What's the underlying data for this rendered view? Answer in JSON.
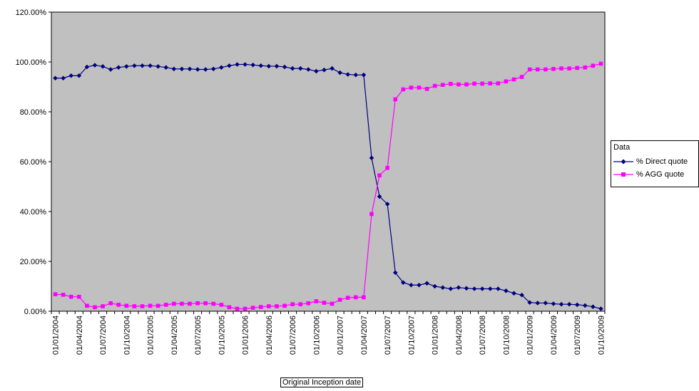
{
  "chart_data": {
    "type": "line",
    "xlabel": "Original Inception date",
    "legend_title": "Data",
    "legend_position": "right",
    "ylim": [
      0,
      120
    ],
    "y_ticks": [
      "0.00%",
      "20.00%",
      "40.00%",
      "60.00%",
      "80.00%",
      "100.00%",
      "120.00%"
    ],
    "x_tick_labels": [
      "01/01/2004",
      "01/04/2004",
      "01/07/2004",
      "01/10/2004",
      "01/01/2005",
      "01/04/2005",
      "01/07/2005",
      "01/10/2005",
      "01/01/2006",
      "01/04/2006",
      "01/07/2006",
      "01/10/2006",
      "01/01/2007",
      "01/04/2007",
      "01/07/2007",
      "01/10/2007",
      "01/01/2008",
      "01/04/2008",
      "01/07/2008",
      "01/10/2008",
      "01/01/2009",
      "01/04/2009",
      "01/07/2009",
      "01/10/2009"
    ],
    "x_start": "01/01/2004",
    "x_interval": "monthly",
    "plot_background": "#c0c0c0",
    "series": [
      {
        "name": "% Direct quote",
        "color": "#000080",
        "marker": "diamond",
        "values": [
          93.5,
          93.5,
          94.5,
          94.5,
          98.0,
          98.7,
          98.2,
          97.0,
          97.8,
          98.2,
          98.5,
          98.5,
          98.5,
          98.2,
          97.8,
          97.2,
          97.2,
          97.2,
          97.0,
          97.0,
          97.2,
          97.8,
          98.5,
          99.0,
          99.0,
          98.8,
          98.5,
          98.3,
          98.3,
          98.0,
          97.4,
          97.4,
          97.0,
          96.3,
          96.8,
          97.4,
          95.7,
          95.0,
          94.8,
          94.8,
          61.5,
          46.0,
          43.0,
          15.5,
          11.5,
          10.5,
          10.5,
          11.2,
          10.0,
          9.5,
          9.0,
          9.5,
          9.2,
          9.0,
          9.0,
          9.0,
          9.0,
          8.2,
          7.2,
          6.5,
          3.5,
          3.3,
          3.3,
          3.0,
          2.8,
          2.8,
          2.6,
          2.3,
          1.8,
          1.0
        ]
      },
      {
        "name": "% AGG quote",
        "color": "#ff00ff",
        "marker": "square",
        "values": [
          6.8,
          6.6,
          5.8,
          5.8,
          2.2,
          1.6,
          2.0,
          3.2,
          2.6,
          2.2,
          2.0,
          2.0,
          2.2,
          2.2,
          2.6,
          3.0,
          3.0,
          3.0,
          3.2,
          3.2,
          3.0,
          2.6,
          1.6,
          1.0,
          1.0,
          1.4,
          1.7,
          2.0,
          2.0,
          2.2,
          2.8,
          2.8,
          3.2,
          4.0,
          3.4,
          3.0,
          4.6,
          5.4,
          5.6,
          5.6,
          39.0,
          54.5,
          57.5,
          85.0,
          89.0,
          89.7,
          89.7,
          89.2,
          90.4,
          90.8,
          91.2,
          91.0,
          91.0,
          91.3,
          91.3,
          91.4,
          91.4,
          92.2,
          93.0,
          94.0,
          97.0,
          97.0,
          97.0,
          97.2,
          97.4,
          97.4,
          97.6,
          97.8,
          98.5,
          99.3
        ]
      }
    ]
  }
}
